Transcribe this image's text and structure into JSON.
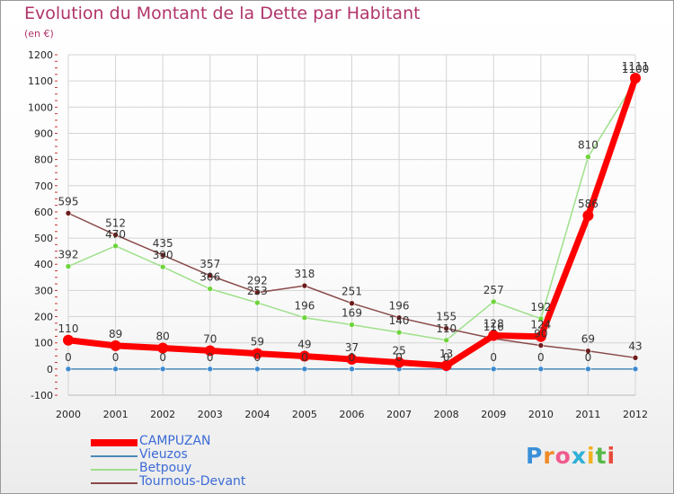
{
  "title": "Evolution du Montant de la Dette par Habitant",
  "unit": "(en €)",
  "logo": "Proxiti",
  "colors": {
    "title": "#b0346a",
    "grid": "#d4d4d4",
    "axis_text": "#222222",
    "value_text": "#333333",
    "legend_text": "#3b6bd6"
  },
  "chart_data": {
    "type": "line",
    "x": [
      "2000",
      "2001",
      "2002",
      "2003",
      "2004",
      "2005",
      "2006",
      "2007",
      "2008",
      "2009",
      "2010",
      "2011",
      "2012"
    ],
    "ylim": [
      -100,
      1200
    ],
    "yticks": [
      -100,
      0,
      100,
      200,
      300,
      400,
      500,
      600,
      700,
      800,
      900,
      1000,
      1100,
      1200
    ],
    "grid": true,
    "legend_position": "bottom-left",
    "series": [
      {
        "name": "Vieuzos",
        "color": "#4a8ab8",
        "marker": "#3d8ad0",
        "values": [
          0,
          0,
          0,
          0,
          0,
          0,
          0,
          0,
          0,
          0,
          0,
          0,
          0
        ],
        "labels": [
          "0",
          "0",
          "0",
          "0",
          "0",
          "0",
          "0",
          "0",
          "0",
          "0",
          "0",
          "0",
          ""
        ]
      },
      {
        "name": "Betpouy",
        "color": "#9ee08a",
        "marker": "#6ed43c",
        "values": [
          392,
          470,
          390,
          306,
          253,
          196,
          169,
          140,
          110,
          257,
          192,
          810,
          1100
        ],
        "labels": [
          "392",
          "470",
          "390",
          "306",
          "253",
          "196",
          "169",
          "140",
          "110",
          "257",
          "192",
          "810",
          "1100"
        ]
      },
      {
        "name": "Tournous-Devant",
        "color": "#8a4a4a",
        "marker": "#6e1c1c",
        "values": [
          595,
          512,
          435,
          357,
          292,
          318,
          251,
          196,
          155,
          116,
          90,
          69,
          43
        ],
        "labels": [
          "595",
          "512",
          "435",
          "357",
          "292",
          "318",
          "251",
          "196",
          "155",
          "116",
          "90",
          "69",
          "43"
        ]
      },
      {
        "name": "CAMPUZAN",
        "color": "#ff0000",
        "marker": "#ff0000",
        "values": [
          110,
          89,
          80,
          70,
          59,
          49,
          37,
          25,
          13,
          128,
          124,
          586,
          1111
        ],
        "labels": [
          "110",
          "89",
          "80",
          "70",
          "59",
          "49",
          "37",
          "25",
          "13",
          "128",
          "124",
          "586",
          "1111"
        ]
      }
    ],
    "legend_order": [
      "CAMPUZAN",
      "Vieuzos",
      "Betpouy",
      "Tournous-Devant"
    ]
  }
}
